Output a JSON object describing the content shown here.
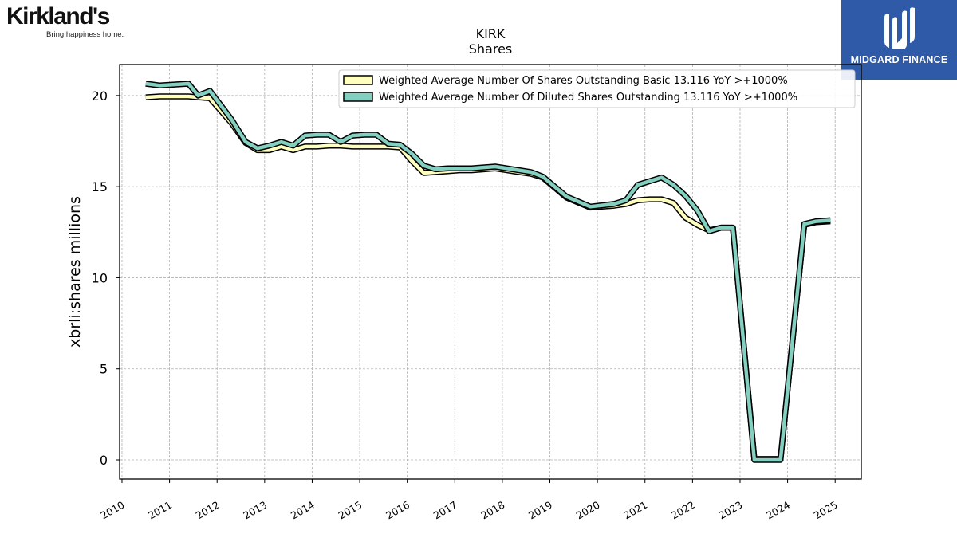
{
  "branding": {
    "left_logo_text": "Kirkland's",
    "left_logo_tagline": "Bring happiness home.",
    "right_logo_text": "MIDGARD FINANCE",
    "right_logo_color": "#2f5aa8"
  },
  "chart_data": {
    "type": "line",
    "title": "KIRK",
    "subtitle": "Shares",
    "xlabel": "",
    "ylabel": "xbrli:shares millions",
    "xlim": [
      2009.95,
      2025.55
    ],
    "ylim": [
      -1.05,
      21.7
    ],
    "x_ticks": [
      "2010",
      "2011",
      "2012",
      "2013",
      "2014",
      "2015",
      "2016",
      "2017",
      "2018",
      "2019",
      "2020",
      "2021",
      "2022",
      "2023",
      "2024",
      "2025"
    ],
    "y_ticks": [
      "0",
      "5",
      "10",
      "15",
      "20"
    ],
    "grid": true,
    "legend_position": "top-right",
    "series": [
      {
        "name": "Weighted Average Number Of Shares Outstanding Basic  13.116 YoY >+1000%",
        "color": "#ffffc0",
        "x": [
          2010.5,
          2010.8,
          2011.1,
          2011.4,
          2011.6,
          2011.85,
          2012.3,
          2012.6,
          2012.85,
          2013.1,
          2013.35,
          2013.6,
          2013.85,
          2014.1,
          2014.35,
          2014.6,
          2014.85,
          2015.1,
          2015.35,
          2015.6,
          2015.85,
          2016.1,
          2016.35,
          2016.6,
          2016.85,
          2017.1,
          2017.35,
          2017.85,
          2018.35,
          2018.6,
          2018.85,
          2019.35,
          2019.85,
          2020.35,
          2020.6,
          2020.85,
          2021.1,
          2021.35,
          2021.6,
          2021.85,
          2022.1,
          2022.35,
          2022.6,
          2022.85,
          2023.3,
          2023.6,
          2023.85,
          2024.35,
          2024.6,
          2024.9
        ],
        "values": [
          19.9,
          19.95,
          19.95,
          19.95,
          19.9,
          19.85,
          18.5,
          17.4,
          17.0,
          17.0,
          17.2,
          17.0,
          17.2,
          17.2,
          17.25,
          17.25,
          17.2,
          17.2,
          17.2,
          17.2,
          17.15,
          16.4,
          15.75,
          15.8,
          15.85,
          15.9,
          15.9,
          16.0,
          15.8,
          15.7,
          15.5,
          14.4,
          13.85,
          13.95,
          14.05,
          14.25,
          14.3,
          14.3,
          14.1,
          13.3,
          12.9,
          12.6,
          12.75,
          12.75,
          0.05,
          0.05,
          0.05,
          12.9,
          13.05,
          13.1
        ]
      },
      {
        "name": "Weighted Average Number Of Diluted Shares Outstanding  13.116 YoY >+1000%",
        "color": "#84d0c0",
        "x": [
          2010.5,
          2010.8,
          2011.1,
          2011.4,
          2011.6,
          2011.85,
          2012.3,
          2012.6,
          2012.85,
          2013.1,
          2013.35,
          2013.6,
          2013.85,
          2014.1,
          2014.35,
          2014.6,
          2014.85,
          2015.1,
          2015.35,
          2015.6,
          2015.85,
          2016.1,
          2016.35,
          2016.6,
          2016.85,
          2017.1,
          2017.35,
          2017.85,
          2018.35,
          2018.6,
          2018.85,
          2019.35,
          2019.85,
          2020.35,
          2020.6,
          2020.85,
          2021.1,
          2021.35,
          2021.6,
          2021.85,
          2022.1,
          2022.35,
          2022.6,
          2022.85,
          2023.3,
          2023.6,
          2023.85,
          2024.35,
          2024.6,
          2024.9
        ],
        "values": [
          20.65,
          20.55,
          20.6,
          20.65,
          20.0,
          20.25,
          18.7,
          17.45,
          17.1,
          17.25,
          17.45,
          17.25,
          17.8,
          17.85,
          17.85,
          17.45,
          17.8,
          17.85,
          17.85,
          17.35,
          17.3,
          16.8,
          16.15,
          15.95,
          16.0,
          16.0,
          16.0,
          16.1,
          15.9,
          15.8,
          15.55,
          14.45,
          13.9,
          14.05,
          14.25,
          15.1,
          15.3,
          15.5,
          15.1,
          14.5,
          13.7,
          12.55,
          12.75,
          12.75,
          0.0,
          0.0,
          0.0,
          12.95,
          13.1,
          13.15
        ]
      }
    ]
  }
}
